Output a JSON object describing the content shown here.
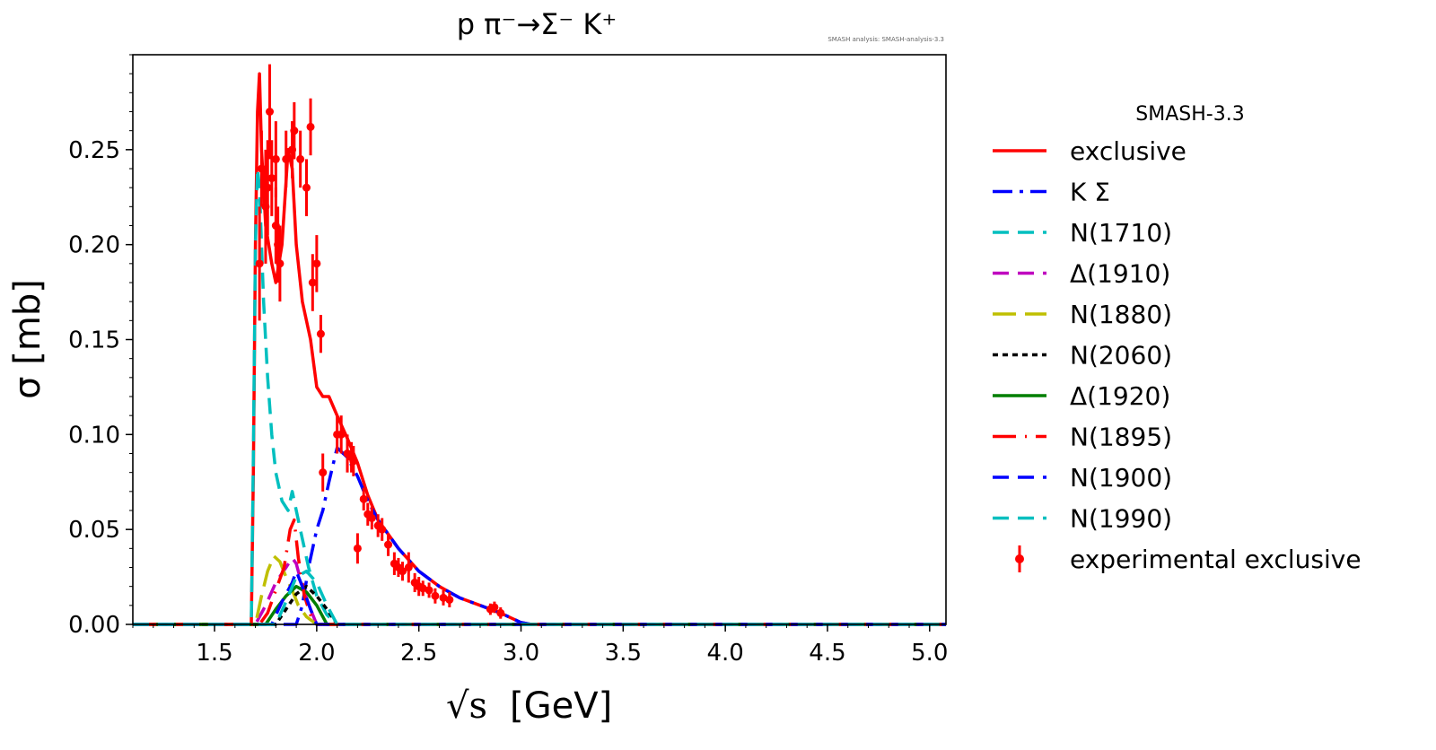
{
  "chart_data": {
    "type": "line",
    "title": "p π⁻→Σ⁻ K⁺",
    "annotation": "SMASH analysis: SMASH-analysis-3.3",
    "xlabel": "[GeV]",
    "xlabel_symbol": "√s",
    "ylabel": "σ [mb]",
    "xlim": [
      1.1,
      5.08
    ],
    "ylim": [
      0.0,
      0.3
    ],
    "xticks": [
      1.5,
      2.0,
      2.5,
      3.0,
      3.5,
      4.0,
      4.5,
      5.0
    ],
    "xtick_labels": [
      "1.5",
      "2.0",
      "2.5",
      "3.0",
      "3.5",
      "4.0",
      "4.5",
      "5.0"
    ],
    "yticks": [
      0.0,
      0.05,
      0.1,
      0.15,
      0.2,
      0.25
    ],
    "ytick_labels": [
      "0.00",
      "0.05",
      "0.10",
      "0.15",
      "0.20",
      "0.25"
    ],
    "legend_title": "SMASH-3.3",
    "legend_position": "outside-right",
    "series": [
      {
        "name": "exclusive",
        "color": "#ff0000",
        "dash": "solid",
        "x": [
          1.1,
          1.68,
          1.69,
          1.7,
          1.71,
          1.72,
          1.73,
          1.75,
          1.78,
          1.8,
          1.83,
          1.86,
          1.88,
          1.9,
          1.93,
          1.97,
          2.0,
          2.03,
          2.06,
          2.1,
          2.15,
          2.2,
          2.25,
          2.3,
          2.4,
          2.5,
          2.6,
          2.7,
          2.8,
          2.9,
          3.0,
          3.05,
          5.08
        ],
        "y": [
          0.0,
          0.0,
          0.08,
          0.2,
          0.27,
          0.29,
          0.25,
          0.21,
          0.19,
          0.18,
          0.2,
          0.25,
          0.24,
          0.2,
          0.17,
          0.15,
          0.125,
          0.12,
          0.12,
          0.11,
          0.098,
          0.085,
          0.068,
          0.055,
          0.04,
          0.028,
          0.02,
          0.014,
          0.01,
          0.006,
          0.001,
          0.0,
          0.0
        ]
      },
      {
        "name": "K Σ",
        "color": "#0000ff",
        "dash": "22,8,4,8",
        "x": [
          1.1,
          1.9,
          1.93,
          1.96,
          2.0,
          2.03,
          2.06,
          2.1,
          2.15,
          2.2,
          2.25,
          2.3,
          2.4,
          2.5,
          2.6,
          2.7,
          2.8,
          2.9,
          3.0,
          3.05,
          5.08
        ],
        "y": [
          0.0,
          0.0,
          0.01,
          0.03,
          0.05,
          0.06,
          0.075,
          0.093,
          0.088,
          0.078,
          0.065,
          0.055,
          0.04,
          0.028,
          0.02,
          0.014,
          0.01,
          0.006,
          0.001,
          0.0,
          0.0
        ]
      },
      {
        "name": "N(1710)",
        "color": "#00bfbf",
        "dash": "18,10",
        "x": [
          1.1,
          1.68,
          1.69,
          1.7,
          1.71,
          1.72,
          1.73,
          1.74,
          1.76,
          1.78,
          1.8,
          1.83,
          1.86,
          1.88,
          1.9,
          1.93,
          1.96,
          2.0,
          2.05,
          2.1,
          5.08
        ],
        "y": [
          0.0,
          0.0,
          0.09,
          0.2,
          0.24,
          0.23,
          0.2,
          0.17,
          0.13,
          0.1,
          0.08,
          0.065,
          0.06,
          0.07,
          0.06,
          0.045,
          0.03,
          0.015,
          0.005,
          0.0,
          0.0
        ]
      },
      {
        "name": "Δ(1910)",
        "color": "#bf00bf",
        "dash": "18,10",
        "x": [
          1.1,
          1.7,
          1.75,
          1.8,
          1.85,
          1.88,
          1.9,
          1.93,
          1.97,
          2.0,
          5.08
        ],
        "y": [
          0.0,
          0.0,
          0.01,
          0.022,
          0.03,
          0.035,
          0.032,
          0.02,
          0.008,
          0.0,
          0.0
        ]
      },
      {
        "name": "N(1880)",
        "color": "#bfbf00",
        "dash": "26,10",
        "x": [
          1.1,
          1.7,
          1.73,
          1.76,
          1.79,
          1.82,
          1.85,
          1.88,
          1.91,
          1.95,
          2.0,
          5.08
        ],
        "y": [
          0.0,
          0.0,
          0.015,
          0.028,
          0.036,
          0.033,
          0.025,
          0.018,
          0.01,
          0.004,
          0.0,
          0.0
        ]
      },
      {
        "name": "N(2060)",
        "color": "#000000",
        "dash": "6,5",
        "x": [
          1.1,
          1.8,
          1.85,
          1.9,
          1.95,
          2.0,
          2.05,
          2.1,
          5.08
        ],
        "y": [
          0.0,
          0.0,
          0.008,
          0.016,
          0.02,
          0.015,
          0.008,
          0.0,
          0.0
        ]
      },
      {
        "name": "Δ(1920)",
        "color": "#007f00",
        "dash": "solid",
        "x": [
          1.1,
          1.75,
          1.8,
          1.85,
          1.9,
          1.95,
          2.0,
          2.05,
          5.08
        ],
        "y": [
          0.0,
          0.0,
          0.008,
          0.015,
          0.02,
          0.017,
          0.01,
          0.0,
          0.0
        ]
      },
      {
        "name": "N(1895)",
        "color": "#ff0000",
        "dash": "26,10,2,10",
        "x": [
          1.1,
          1.72,
          1.76,
          1.8,
          1.84,
          1.87,
          1.89,
          1.91,
          1.94,
          1.97,
          2.0,
          5.08
        ],
        "y": [
          0.0,
          0.0,
          0.006,
          0.018,
          0.03,
          0.05,
          0.055,
          0.035,
          0.015,
          0.005,
          0.0,
          0.0
        ]
      },
      {
        "name": "N(1900)",
        "color": "#0000ff",
        "dash": "18,10",
        "x": [
          1.1,
          1.78,
          1.83,
          1.88,
          1.9,
          1.93,
          1.97,
          2.0,
          5.08
        ],
        "y": [
          0.0,
          0.0,
          0.012,
          0.022,
          0.028,
          0.02,
          0.008,
          0.0,
          0.0
        ]
      },
      {
        "name": "N(1990)",
        "color": "#00bfbf",
        "dash": "18,10",
        "x": [
          1.1,
          1.8,
          1.85,
          1.9,
          1.95,
          2.0,
          2.05,
          2.1,
          5.08
        ],
        "y": [
          0.0,
          0.0,
          0.012,
          0.025,
          0.028,
          0.022,
          0.01,
          0.0,
          0.0
        ]
      }
    ],
    "experimental": {
      "name": "experimental exclusive",
      "color": "#ff0000",
      "x": [
        1.72,
        1.73,
        1.75,
        1.76,
        1.77,
        1.78,
        1.8,
        1.8,
        1.81,
        1.82,
        1.85,
        1.88,
        1.89,
        1.92,
        1.95,
        1.97,
        1.98,
        2.0,
        2.02,
        2.03,
        2.1,
        2.12,
        2.15,
        2.17,
        2.18,
        2.2,
        2.23,
        2.25,
        2.27,
        2.3,
        2.32,
        2.35,
        2.38,
        2.4,
        2.42,
        2.45,
        2.48,
        2.5,
        2.52,
        2.55,
        2.58,
        2.62,
        2.65,
        2.85,
        2.87,
        2.9
      ],
      "y": [
        0.19,
        0.24,
        0.22,
        0.23,
        0.27,
        0.235,
        0.21,
        0.245,
        0.2,
        0.19,
        0.245,
        0.25,
        0.26,
        0.245,
        0.23,
        0.262,
        0.18,
        0.19,
        0.153,
        0.08,
        0.1,
        0.1,
        0.09,
        0.088,
        0.086,
        0.04,
        0.066,
        0.058,
        0.056,
        0.052,
        0.05,
        0.042,
        0.032,
        0.03,
        0.028,
        0.03,
        0.022,
        0.02,
        0.019,
        0.018,
        0.015,
        0.014,
        0.013,
        0.008,
        0.009,
        0.006
      ],
      "yerr": [
        0.03,
        0.02,
        0.03,
        0.025,
        0.025,
        0.02,
        0.02,
        0.02,
        0.02,
        0.02,
        0.015,
        0.015,
        0.015,
        0.015,
        0.015,
        0.015,
        0.015,
        0.015,
        0.01,
        0.01,
        0.01,
        0.01,
        0.01,
        0.008,
        0.008,
        0.008,
        0.006,
        0.006,
        0.006,
        0.006,
        0.006,
        0.006,
        0.006,
        0.005,
        0.005,
        0.008,
        0.005,
        0.005,
        0.004,
        0.004,
        0.004,
        0.004,
        0.004,
        0.003,
        0.003,
        0.003
      ]
    }
  }
}
